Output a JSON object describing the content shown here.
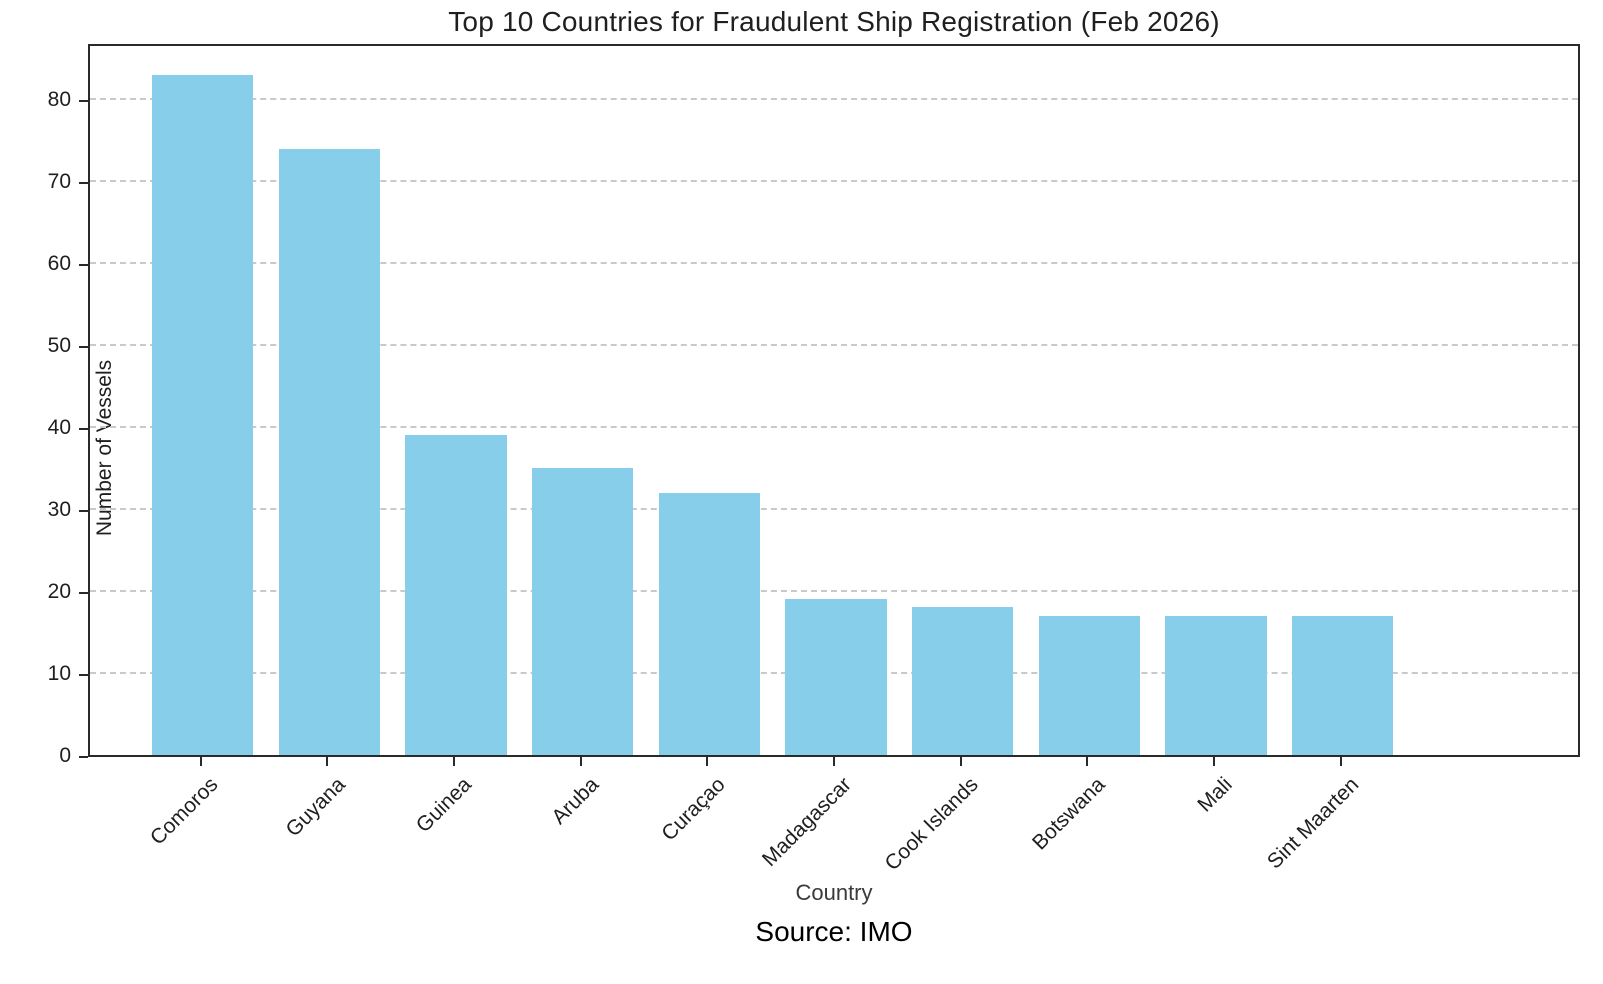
{
  "chart_data": {
    "type": "bar",
    "title": "Top 10 Countries for Fraudulent Ship Registration (Feb 2026)",
    "xlabel": "Country",
    "ylabel": "Number of Vessels",
    "source": "Source: IMO",
    "categories": [
      "Comoros",
      "Guyana",
      "Guinea",
      "Aruba",
      "Curaçao",
      "Madagascar",
      "Cook Islands",
      "Botswana",
      "Mali",
      "Sint Maarten"
    ],
    "values": [
      83,
      74,
      39,
      35,
      32,
      19,
      18,
      17,
      17,
      17
    ],
    "yticks": [
      0,
      10,
      20,
      30,
      40,
      50,
      60,
      70,
      80
    ],
    "ylim": [
      0,
      87
    ],
    "bar_color": "#87CEEB",
    "bar_width_fraction": 0.8,
    "x_margin_units": 0.888,
    "grid": true,
    "grid_axis": "y",
    "grid_style": "dashed",
    "legend": "none"
  }
}
